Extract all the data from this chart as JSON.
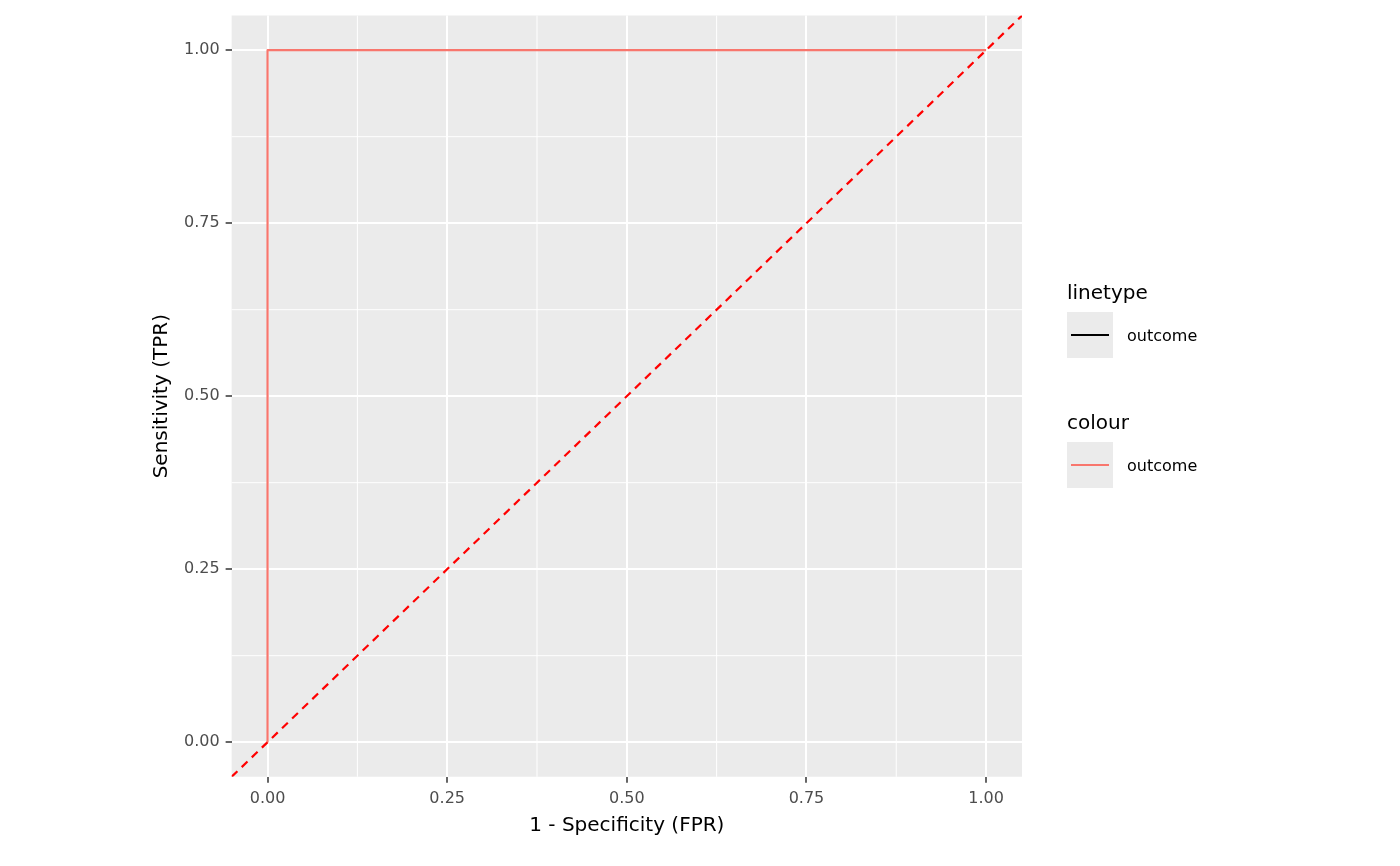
{
  "chart_data": {
    "type": "line",
    "xlabel": "1 - Specificity (FPR)",
    "ylabel": "Sensitivity (TPR)",
    "legend_title": "linetype",
    "annotations": [
      "colour"
    ],
    "xlim": [
      -0.05,
      1.05
    ],
    "ylim": [
      -0.05,
      1.05
    ],
    "xticks": [
      {
        "value": 0,
        "label": "0.00"
      },
      {
        "value": 0.25,
        "label": "0.25"
      },
      {
        "value": 0.5,
        "label": "0.50"
      },
      {
        "value": 0.75,
        "label": "0.75"
      },
      {
        "value": 1,
        "label": "1.00"
      }
    ],
    "yticks": [
      {
        "value": 0,
        "label": "0.00"
      },
      {
        "value": 0.25,
        "label": "0.25"
      },
      {
        "value": 0.5,
        "label": "0.50"
      },
      {
        "value": 0.75,
        "label": "0.75"
      },
      {
        "value": 1,
        "label": "1.00"
      }
    ],
    "grid": true,
    "legend": "right",
    "marker": "none",
    "series": [
      {
        "name": "outcome",
        "color": "#000000"
      },
      {
        "name": "outcome",
        "color": "#f8766d",
        "x": [
          0,
          0,
          1
        ],
        "values": [
          0,
          1,
          1
        ]
      },
      {
        "color": "#ff0000",
        "line_style": "dashed",
        "x": [
          -0.05,
          1.05
        ],
        "values": [
          -0.05,
          1.05
        ]
      }
    ]
  }
}
